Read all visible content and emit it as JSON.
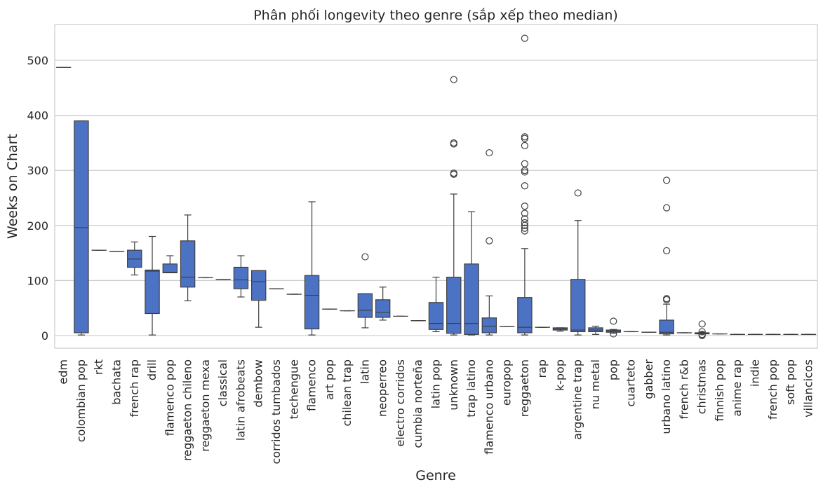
{
  "chart_data": {
    "type": "box",
    "title": "Phân phối longevity theo genre (sắp xếp theo median)",
    "xlabel": "Genre",
    "ylabel": "Weeks on Chart",
    "ylim": [
      -23,
      565
    ],
    "yticks": [
      0,
      100,
      200,
      300,
      400,
      500
    ],
    "grid": "horizontal",
    "box_color": "#4c72c4",
    "line_color": "#3f3f3f",
    "categories": [
      {
        "genre": "edm",
        "whislo": 487,
        "q1": 487,
        "med": 487,
        "q3": 487,
        "whishi": 487,
        "fliers": []
      },
      {
        "genre": "colombian pop",
        "whislo": 1,
        "q1": 5,
        "med": 196,
        "q3": 390,
        "whishi": 390,
        "fliers": []
      },
      {
        "genre": "rkt",
        "whislo": 155,
        "q1": 155,
        "med": 155,
        "q3": 155,
        "whishi": 155,
        "fliers": []
      },
      {
        "genre": "bachata",
        "whislo": 153,
        "q1": 153,
        "med": 153,
        "q3": 153,
        "whishi": 153,
        "fliers": []
      },
      {
        "genre": "french rap",
        "whislo": 110,
        "q1": 124,
        "med": 139,
        "q3": 155,
        "whishi": 170,
        "fliers": []
      },
      {
        "genre": "drill",
        "whislo": 1,
        "q1": 40,
        "med": 117,
        "q3": 119,
        "whishi": 180,
        "fliers": []
      },
      {
        "genre": "flamenco pop",
        "whislo": 114,
        "q1": 114,
        "med": 115,
        "q3": 130,
        "whishi": 145,
        "fliers": []
      },
      {
        "genre": "reggaeton chileno",
        "whislo": 63,
        "q1": 88,
        "med": 106,
        "q3": 172,
        "whishi": 219,
        "fliers": []
      },
      {
        "genre": "reggaeton mexa",
        "whislo": 105,
        "q1": 105,
        "med": 105,
        "q3": 105,
        "whishi": 105,
        "fliers": []
      },
      {
        "genre": "classical",
        "whislo": 102,
        "q1": 102,
        "med": 102,
        "q3": 102,
        "whishi": 102,
        "fliers": []
      },
      {
        "genre": "latin afrobeats",
        "whislo": 70,
        "q1": 85,
        "med": 101,
        "q3": 124,
        "whishi": 145,
        "fliers": []
      },
      {
        "genre": "dembow",
        "whislo": 15,
        "q1": 64,
        "med": 98,
        "q3": 118,
        "whishi": 118,
        "fliers": []
      },
      {
        "genre": "corridos tumbados",
        "whislo": 85,
        "q1": 85,
        "med": 85,
        "q3": 85,
        "whishi": 85,
        "fliers": []
      },
      {
        "genre": "techengue",
        "whislo": 75,
        "q1": 75,
        "med": 75,
        "q3": 75,
        "whishi": 75,
        "fliers": []
      },
      {
        "genre": "flamenco",
        "whislo": 1,
        "q1": 12,
        "med": 73,
        "q3": 109,
        "whishi": 243,
        "fliers": []
      },
      {
        "genre": "art pop",
        "whislo": 48,
        "q1": 48,
        "med": 48,
        "q3": 48,
        "whishi": 48,
        "fliers": []
      },
      {
        "genre": "chilean trap",
        "whislo": 45,
        "q1": 45,
        "med": 45,
        "q3": 45,
        "whishi": 45,
        "fliers": []
      },
      {
        "genre": "latin",
        "whislo": 14,
        "q1": 33,
        "med": 46,
        "q3": 76,
        "whishi": 76,
        "fliers": [
          143
        ]
      },
      {
        "genre": "neoperreo",
        "whislo": 28,
        "q1": 33,
        "med": 42,
        "q3": 65,
        "whishi": 88,
        "fliers": []
      },
      {
        "genre": "electro corridos",
        "whislo": 35,
        "q1": 35,
        "med": 35,
        "q3": 35,
        "whishi": 35,
        "fliers": []
      },
      {
        "genre": "cumbia norteña",
        "whislo": 27,
        "q1": 27,
        "med": 27,
        "q3": 27,
        "whishi": 27,
        "fliers": []
      },
      {
        "genre": "latin pop",
        "whislo": 7,
        "q1": 11,
        "med": 22,
        "q3": 60,
        "whishi": 106,
        "fliers": []
      },
      {
        "genre": "unknown",
        "whislo": 1,
        "q1": 4,
        "med": 22,
        "q3": 106,
        "whishi": 257,
        "fliers": [
          293,
          295,
          348,
          350,
          465
        ]
      },
      {
        "genre": "trap latino",
        "whislo": 1,
        "q1": 2,
        "med": 22,
        "q3": 130,
        "whishi": 225,
        "fliers": []
      },
      {
        "genre": "flamenco urbano",
        "whislo": 1,
        "q1": 5,
        "med": 17,
        "q3": 32,
        "whishi": 72,
        "fliers": [
          172,
          332
        ]
      },
      {
        "genre": "europop",
        "whislo": 16,
        "q1": 16,
        "med": 16,
        "q3": 16,
        "whishi": 16,
        "fliers": []
      },
      {
        "genre": "reggaeton",
        "whislo": 1,
        "q1": 5,
        "med": 15,
        "q3": 69,
        "whishi": 158,
        "fliers": [
          190,
          195,
          200,
          205,
          212,
          222,
          235,
          272,
          297,
          300,
          312,
          345,
          358,
          361,
          540
        ]
      },
      {
        "genre": "rap",
        "whislo": 15,
        "q1": 15,
        "med": 15,
        "q3": 15,
        "whishi": 15,
        "fliers": []
      },
      {
        "genre": "k-pop",
        "whislo": 8,
        "q1": 10,
        "med": 12,
        "q3": 14,
        "whishi": 14,
        "fliers": []
      },
      {
        "genre": "argentine trap",
        "whislo": 1,
        "q1": 7,
        "med": 10,
        "q3": 102,
        "whishi": 209,
        "fliers": [
          259
        ]
      },
      {
        "genre": "nu metal",
        "whislo": 2,
        "q1": 7,
        "med": 10,
        "q3": 14,
        "whishi": 17,
        "fliers": []
      },
      {
        "genre": "pop",
        "whislo": 4,
        "q1": 6,
        "med": 8,
        "q3": 10,
        "whishi": 11,
        "fliers": [
          3,
          26
        ]
      },
      {
        "genre": "cuarteto",
        "whislo": 7,
        "q1": 7,
        "med": 7,
        "q3": 7,
        "whishi": 7,
        "fliers": []
      },
      {
        "genre": "gabber",
        "whislo": 6,
        "q1": 6,
        "med": 6,
        "q3": 6,
        "whishi": 6,
        "fliers": []
      },
      {
        "genre": "urbano latino",
        "whislo": 1,
        "q1": 3,
        "med": 6,
        "q3": 28,
        "whishi": 57,
        "fliers": [
          65,
          67,
          154,
          232,
          282
        ]
      },
      {
        "genre": "french r&b",
        "whislo": 5,
        "q1": 5,
        "med": 5,
        "q3": 5,
        "whishi": 5,
        "fliers": []
      },
      {
        "genre": "christmas",
        "whislo": 3,
        "q1": 3,
        "med": 4,
        "q3": 5,
        "whishi": 6,
        "fliers": [
          0,
          1,
          2,
          7,
          21
        ]
      },
      {
        "genre": "finnish pop",
        "whislo": 3,
        "q1": 3,
        "med": 3,
        "q3": 3,
        "whishi": 3,
        "fliers": []
      },
      {
        "genre": "anime rap",
        "whislo": 2,
        "q1": 2,
        "med": 2,
        "q3": 2,
        "whishi": 2,
        "fliers": []
      },
      {
        "genre": "indie",
        "whislo": 2,
        "q1": 2,
        "med": 2,
        "q3": 2,
        "whishi": 2,
        "fliers": []
      },
      {
        "genre": "french pop",
        "whislo": 2,
        "q1": 2,
        "med": 2,
        "q3": 2,
        "whishi": 2,
        "fliers": []
      },
      {
        "genre": "soft pop",
        "whislo": 2,
        "q1": 2,
        "med": 2,
        "q3": 2,
        "whishi": 2,
        "fliers": []
      },
      {
        "genre": "villancicos",
        "whislo": 2,
        "q1": 2,
        "med": 2,
        "q3": 2,
        "whishi": 2,
        "fliers": []
      }
    ]
  }
}
